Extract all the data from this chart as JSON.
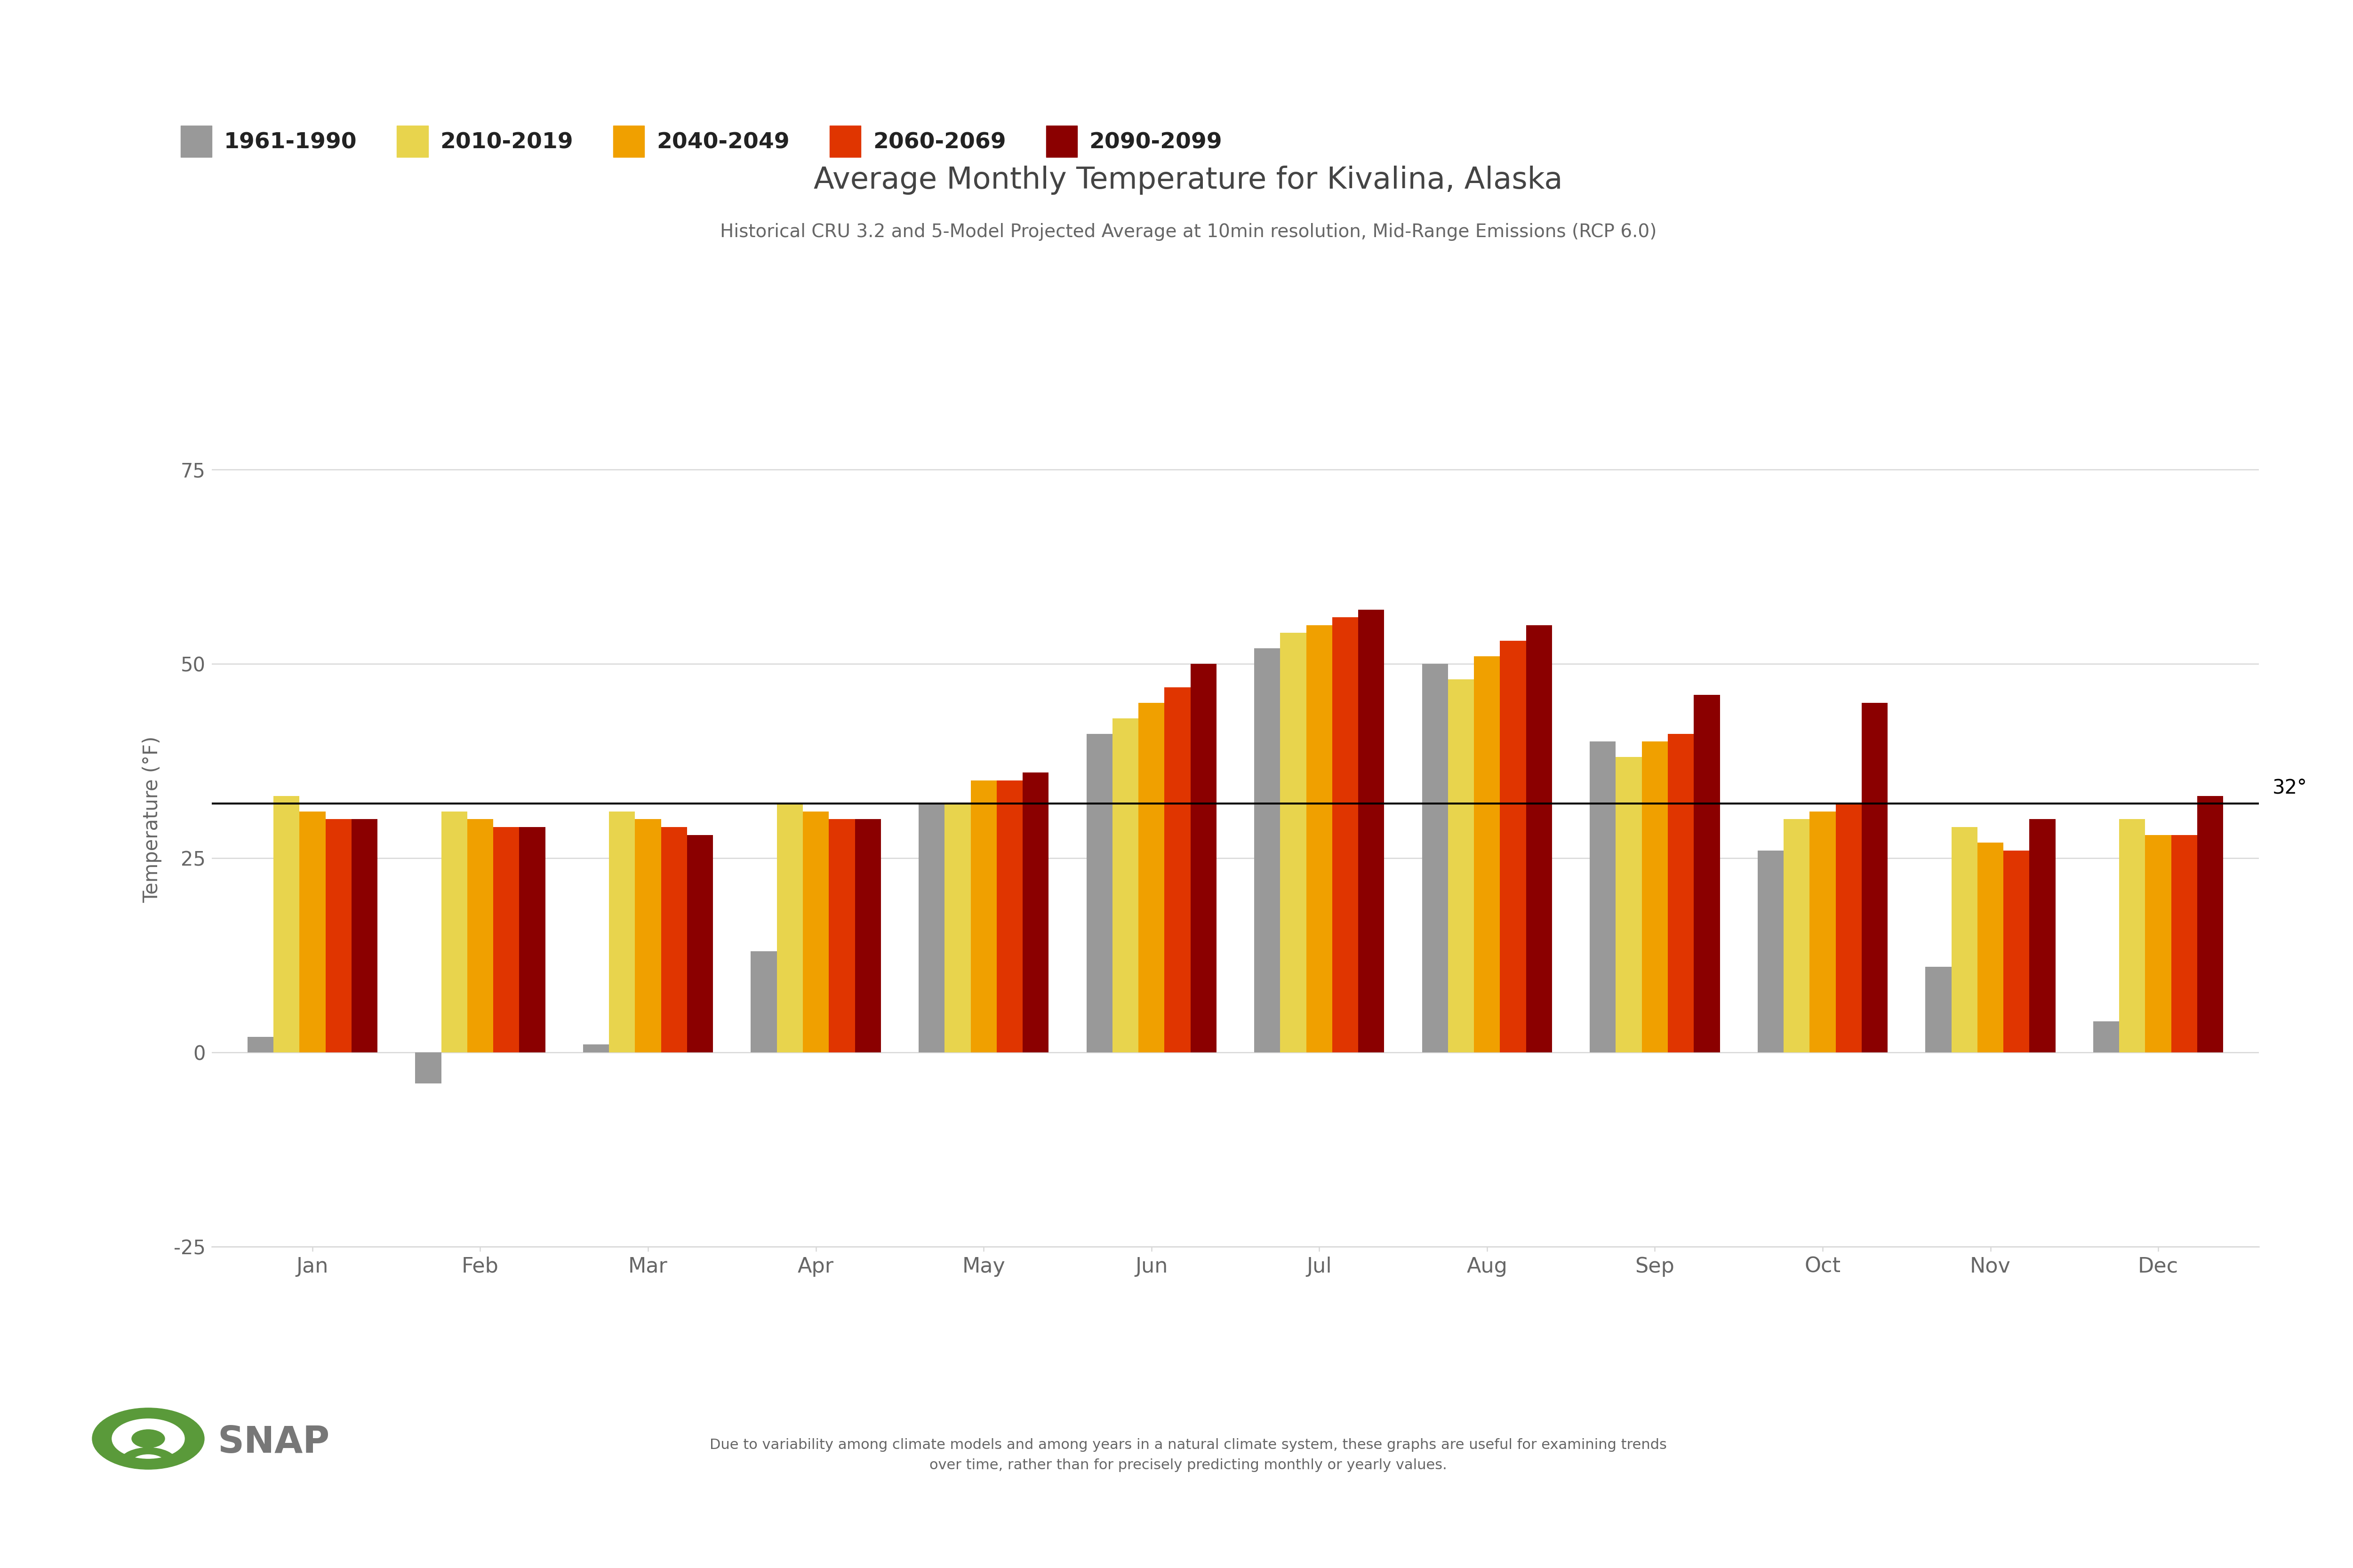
{
  "title": "Average Monthly Temperature for Kivalina, Alaska",
  "subtitle": "Historical CRU 3.2 and 5-Model Projected Average at 10min resolution, Mid-Range Emissions (RCP 6.0)",
  "ylabel": "Temperature (°F)",
  "months": [
    "Jan",
    "Feb",
    "Mar",
    "Apr",
    "May",
    "Jun",
    "Jul",
    "Aug",
    "Sep",
    "Oct",
    "Nov",
    "Dec"
  ],
  "series": {
    "1961-1990": [
      2,
      -4,
      1,
      13,
      32,
      41,
      52,
      50,
      40,
      26,
      11,
      4
    ],
    "2010-2019": [
      33,
      31,
      31,
      32,
      32,
      43,
      54,
      48,
      38,
      30,
      29,
      30
    ],
    "2040-2049": [
      31,
      30,
      30,
      31,
      35,
      45,
      55,
      51,
      40,
      31,
      27,
      28
    ],
    "2060-2069": [
      30,
      29,
      29,
      30,
      35,
      47,
      56,
      53,
      41,
      32,
      26,
      28
    ],
    "2090-2099": [
      30,
      29,
      28,
      30,
      36,
      50,
      57,
      55,
      46,
      45,
      30,
      33
    ]
  },
  "colors": {
    "1961-1990": "#999999",
    "2010-2019": "#e8d44d",
    "2040-2049": "#f0a000",
    "2060-2069": "#e03500",
    "2090-2099": "#8b0000"
  },
  "legend_labels": [
    "1961-1990",
    "2010-2019",
    "2040-2049",
    "2060-2069",
    "2090-2099"
  ],
  "ylim": [
    -25,
    85
  ],
  "yticks": [
    -25,
    0,
    25,
    50,
    75
  ],
  "freezing_line": 32,
  "background_color": "#ffffff",
  "grid_color": "#d8d8d8",
  "title_color": "#444444",
  "subtitle_color": "#666666",
  "axis_color": "#666666",
  "footnote": "Due to variability among climate models and among years in a natural climate system, these graphs are useful for examining trends\nover time, rather than for precisely predicting monthly or yearly values.",
  "snap_color": "#5a9a3a",
  "snap_text_color": "#777777"
}
